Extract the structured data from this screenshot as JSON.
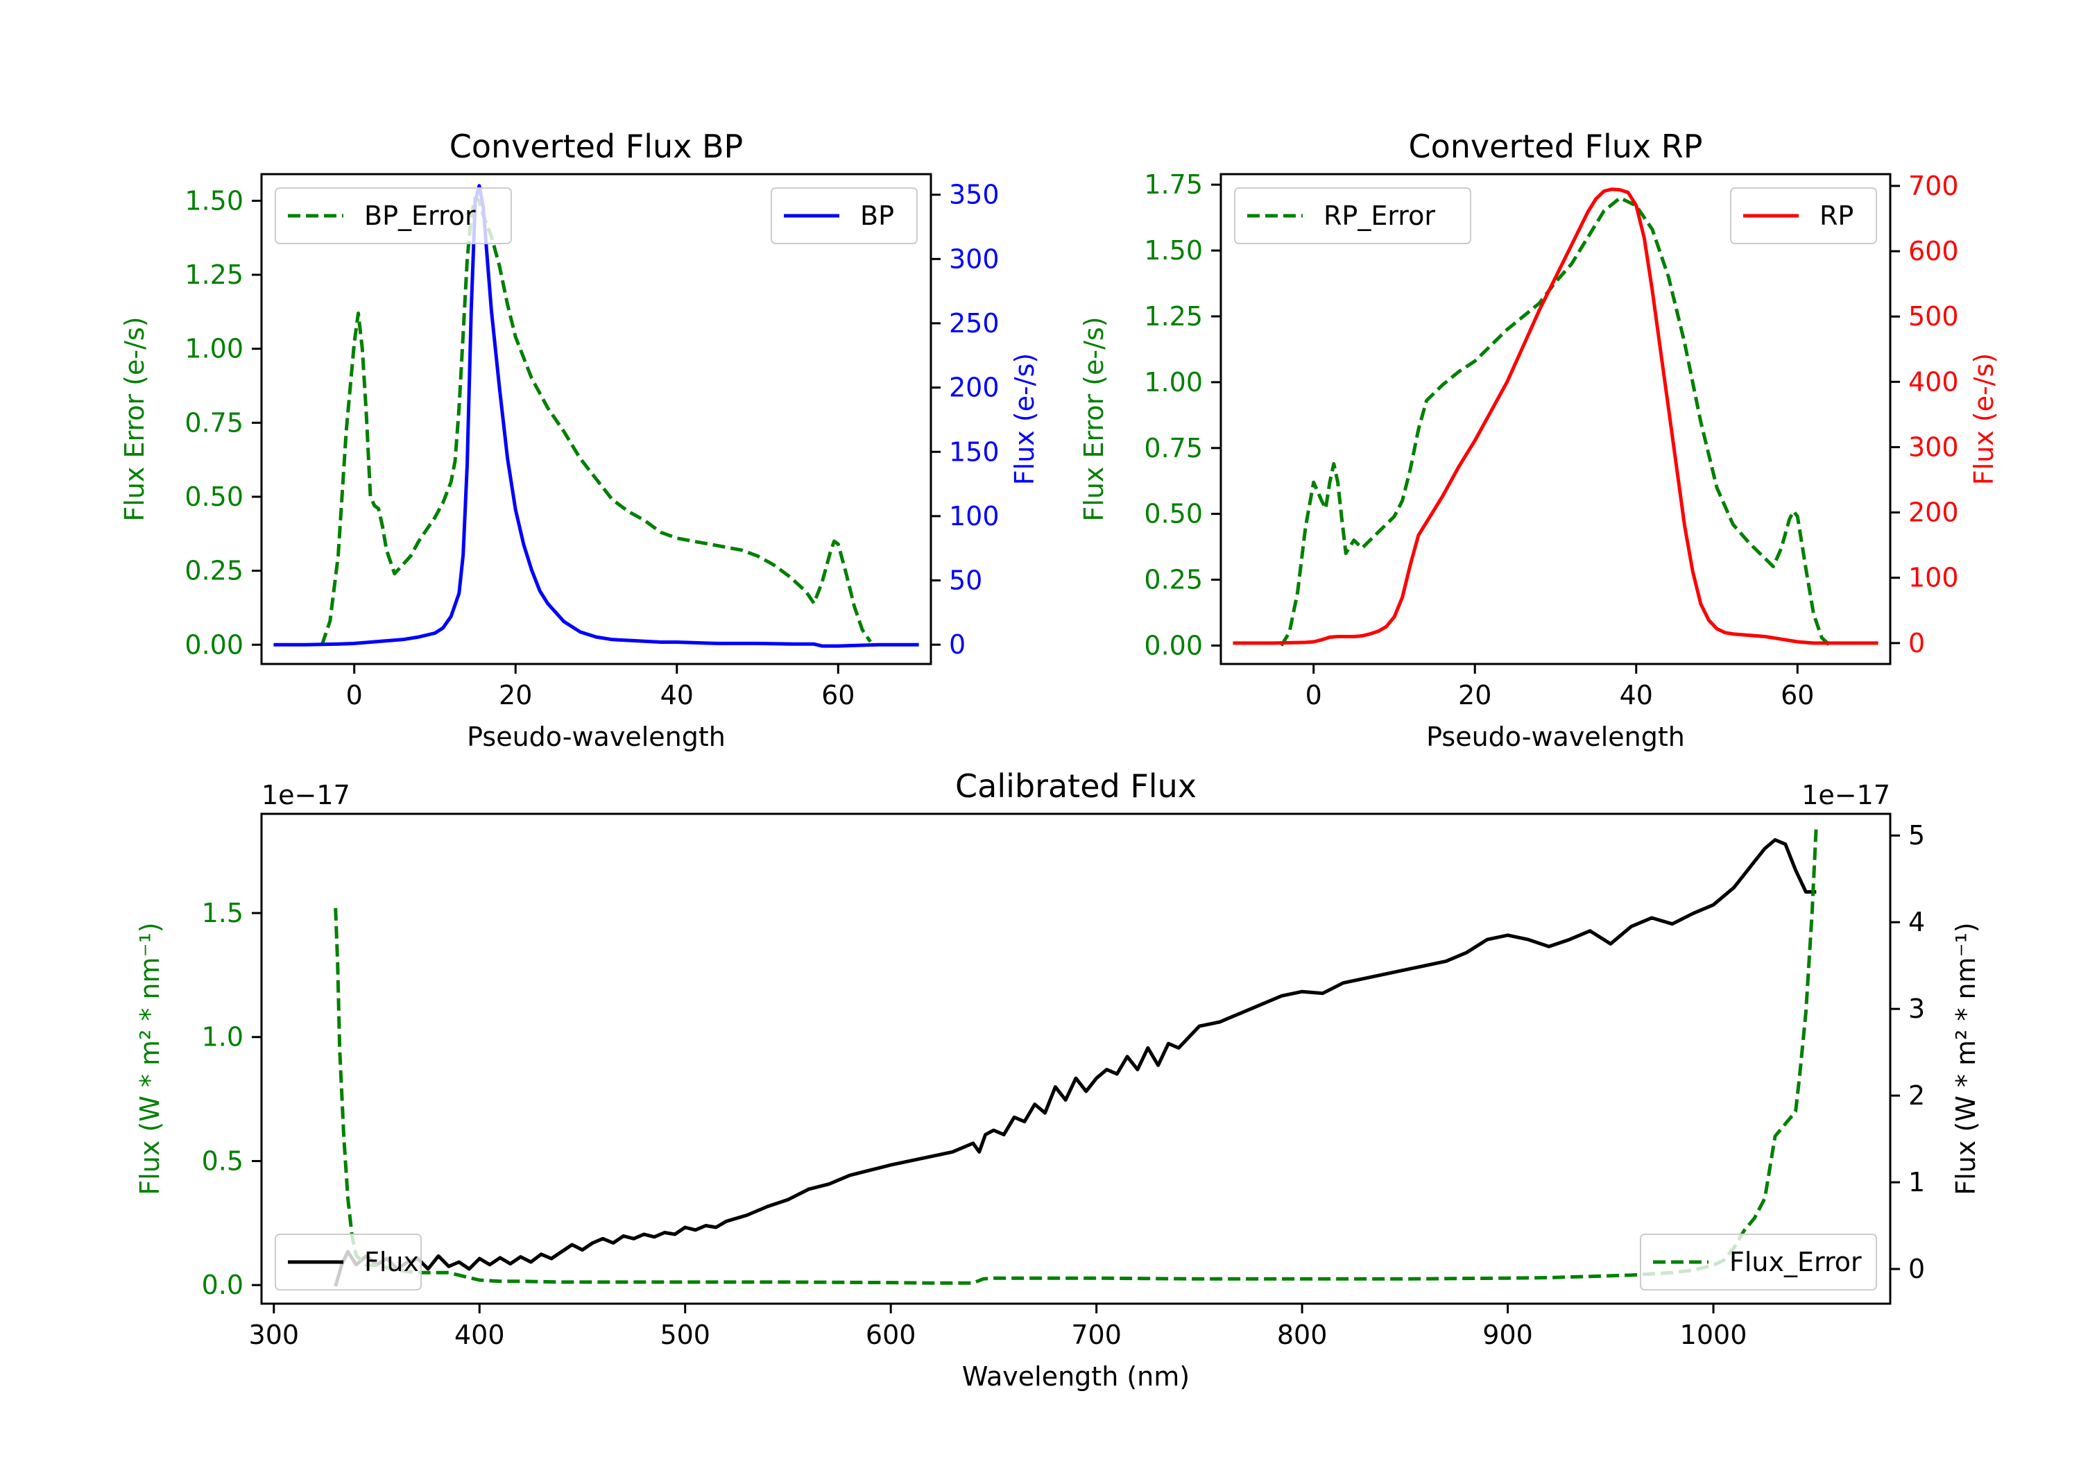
{
  "chart_data": [
    {
      "type": "line",
      "title": "Converted Flux BP",
      "xlabel": "Pseudo-wavelength",
      "ylabel_left": "Flux Error (e-/s)",
      "ylabel_right": "Flux (e-/s)",
      "xlim": [
        -11.5,
        71.5
      ],
      "ylim_left": [
        -0.065,
        1.59
      ],
      "ylim_right": [
        -15,
        366
      ],
      "x_ticks": [
        0,
        20,
        40,
        60
      ],
      "y_ticks_left": [
        0.0,
        0.25,
        0.5,
        0.75,
        1.0,
        1.25,
        1.5
      ],
      "y_tick_labels_left": [
        "0.00",
        "0.25",
        "0.50",
        "0.75",
        "1.00",
        "1.25",
        "1.50"
      ],
      "y_ticks_right": [
        0,
        50,
        100,
        150,
        200,
        250,
        300,
        350
      ],
      "left_color": "#008000",
      "right_color": "#0000ff",
      "legend_left": "top-left",
      "legend_right": "top-right",
      "series": [
        {
          "name": "BP_Error",
          "axis": "left",
          "color": "#008000",
          "style": "dashed",
          "x": [
            -4,
            -3,
            -2,
            -1,
            0,
            0.5,
            1,
            1.5,
            2,
            2.5,
            3,
            3.5,
            4,
            5,
            6,
            7,
            8,
            9,
            10,
            11,
            12,
            12.5,
            13,
            13.5,
            14,
            14.5,
            15,
            15.5,
            16,
            17,
            18,
            19,
            20,
            22,
            24,
            26,
            28,
            30,
            32,
            34,
            36,
            38,
            40,
            42,
            44,
            46,
            48,
            50,
            52,
            54,
            56,
            57,
            58,
            59,
            59.5,
            60,
            61,
            62,
            63,
            64
          ],
          "y": [
            0.0,
            0.08,
            0.3,
            0.72,
            1.02,
            1.12,
            1.0,
            0.78,
            0.5,
            0.47,
            0.46,
            0.4,
            0.32,
            0.24,
            0.27,
            0.3,
            0.35,
            0.39,
            0.43,
            0.48,
            0.55,
            0.62,
            0.8,
            1.05,
            1.3,
            1.45,
            1.51,
            1.5,
            1.45,
            1.38,
            1.28,
            1.15,
            1.04,
            0.9,
            0.8,
            0.72,
            0.63,
            0.56,
            0.49,
            0.45,
            0.42,
            0.38,
            0.36,
            0.35,
            0.34,
            0.33,
            0.32,
            0.3,
            0.27,
            0.23,
            0.18,
            0.14,
            0.21,
            0.31,
            0.35,
            0.34,
            0.24,
            0.13,
            0.05,
            0.01
          ]
        },
        {
          "name": "BP",
          "axis": "right",
          "color": "#0000ff",
          "style": "solid",
          "x": [
            -10,
            -6,
            -2,
            0,
            2,
            4,
            6,
            8,
            10,
            11,
            12,
            13,
            13.5,
            14,
            14.5,
            15,
            15.5,
            16,
            16.5,
            17,
            18,
            19,
            20,
            21,
            22,
            23,
            24,
            26,
            28,
            30,
            32,
            35,
            38,
            40,
            45,
            50,
            55,
            57,
            58,
            60,
            65,
            70
          ],
          "y": [
            0,
            0,
            0.5,
            1,
            2,
            3,
            4,
            6,
            9,
            13,
            22,
            40,
            70,
            140,
            260,
            345,
            357,
            340,
            300,
            260,
            200,
            145,
            105,
            78,
            58,
            42,
            32,
            18,
            10,
            6,
            4,
            3,
            2,
            2,
            1,
            1,
            0.5,
            0.5,
            -1,
            -1,
            0,
            0
          ]
        }
      ]
    },
    {
      "type": "line",
      "title": "Converted Flux RP",
      "xlabel": "Pseudo-wavelength",
      "ylabel_left": "Flux Error (e-/s)",
      "ylabel_right": "Flux (e-/s)",
      "xlim": [
        -11.5,
        71.5
      ],
      "ylim_left": [
        -0.07,
        1.79
      ],
      "ylim_right": [
        -32,
        718
      ],
      "x_ticks": [
        0,
        20,
        40,
        60
      ],
      "y_ticks_left": [
        0.0,
        0.25,
        0.5,
        0.75,
        1.0,
        1.25,
        1.5,
        1.75
      ],
      "y_tick_labels_left": [
        "0.00",
        "0.25",
        "0.50",
        "0.75",
        "1.00",
        "1.25",
        "1.50",
        "1.75"
      ],
      "y_ticks_right": [
        0,
        100,
        200,
        300,
        400,
        500,
        600,
        700
      ],
      "left_color": "#008000",
      "right_color": "#ff0000",
      "legend_left": "top-left",
      "legend_right": "top-right",
      "series": [
        {
          "name": "RP_Error",
          "axis": "left",
          "color": "#008000",
          "style": "dashed",
          "x": [
            -4,
            -3,
            -2,
            -1,
            0,
            1,
            1.5,
            2,
            2.5,
            3,
            3.5,
            4,
            5,
            6,
            7,
            8,
            9,
            10,
            11,
            12,
            13,
            14,
            16,
            18,
            20,
            22,
            24,
            26,
            28,
            30,
            32,
            34,
            36,
            38,
            40,
            42,
            44,
            46,
            48,
            50,
            52,
            54,
            56,
            57,
            58,
            59,
            59.5,
            60,
            61,
            62,
            63,
            64
          ],
          "y": [
            0.0,
            0.05,
            0.2,
            0.45,
            0.62,
            0.55,
            0.52,
            0.62,
            0.69,
            0.62,
            0.48,
            0.35,
            0.4,
            0.37,
            0.4,
            0.43,
            0.46,
            0.49,
            0.55,
            0.67,
            0.82,
            0.93,
            0.99,
            1.04,
            1.08,
            1.14,
            1.2,
            1.25,
            1.3,
            1.38,
            1.45,
            1.55,
            1.65,
            1.7,
            1.67,
            1.58,
            1.4,
            1.15,
            0.85,
            0.6,
            0.46,
            0.39,
            0.33,
            0.3,
            0.37,
            0.48,
            0.51,
            0.49,
            0.3,
            0.12,
            0.03,
            0.0
          ]
        },
        {
          "name": "RP",
          "axis": "right",
          "color": "#ff0000",
          "style": "solid",
          "x": [
            -10,
            -5,
            -1,
            0,
            1,
            2,
            3,
            4,
            5,
            6,
            7,
            8,
            9,
            10,
            11,
            12,
            13,
            14,
            16,
            18,
            20,
            22,
            24,
            26,
            28,
            30,
            32,
            33,
            34,
            35,
            36,
            37,
            38,
            39,
            40,
            41,
            42,
            43,
            44,
            45,
            46,
            47,
            48,
            49,
            50,
            51,
            52,
            54,
            56,
            58,
            60,
            62,
            65,
            70
          ],
          "y": [
            0,
            0,
            1,
            2,
            5,
            9,
            10,
            10,
            10,
            11,
            14,
            18,
            25,
            40,
            70,
            120,
            165,
            185,
            225,
            270,
            310,
            355,
            400,
            455,
            510,
            560,
            610,
            635,
            660,
            680,
            692,
            695,
            694,
            690,
            670,
            620,
            540,
            450,
            360,
            270,
            180,
            110,
            60,
            35,
            22,
            16,
            14,
            12,
            10,
            6,
            2,
            0,
            0,
            0
          ]
        }
      ]
    },
    {
      "type": "line",
      "title": "Calibrated Flux",
      "xlabel": "Wavelength (nm)",
      "ylabel_left": "Flux (W * m² * nm⁻¹)",
      "ylabel_right": "Flux (W * m² * nm⁻¹)",
      "offset_left": "1e−17",
      "offset_right": "1e−17",
      "xlim": [
        294,
        1086
      ],
      "ylim_left": [
        -0.075,
        1.9
      ],
      "ylim_right": [
        -0.4,
        5.25
      ],
      "x_ticks": [
        300,
        400,
        500,
        600,
        700,
        800,
        900,
        1000
      ],
      "y_ticks_left": [
        0.0,
        0.5,
        1.0,
        1.5
      ],
      "y_tick_labels_left": [
        "0.0",
        "0.5",
        "1.0",
        "1.5"
      ],
      "y_ticks_right": [
        0,
        1,
        2,
        3,
        4,
        5
      ],
      "left_color": "#008000",
      "right_color": "#000000",
      "legend_left": "bottom-left",
      "legend_right": "bottom-right",
      "series": [
        {
          "name": "Flux",
          "axis": "right",
          "color": "#000000",
          "style": "solid",
          "x": [
            330,
            333,
            336,
            340,
            345,
            350,
            355,
            360,
            365,
            370,
            375,
            380,
            385,
            390,
            395,
            400,
            405,
            410,
            415,
            420,
            425,
            430,
            435,
            440,
            445,
            450,
            455,
            460,
            465,
            470,
            475,
            480,
            485,
            490,
            495,
            500,
            505,
            510,
            515,
            520,
            530,
            540,
            550,
            560,
            570,
            580,
            590,
            600,
            610,
            620,
            630,
            640,
            643,
            646,
            650,
            655,
            660,
            665,
            670,
            675,
            680,
            685,
            690,
            695,
            700,
            705,
            710,
            715,
            720,
            725,
            730,
            735,
            740,
            750,
            760,
            770,
            780,
            790,
            800,
            810,
            820,
            830,
            840,
            850,
            860,
            870,
            880,
            890,
            900,
            910,
            920,
            930,
            940,
            950,
            960,
            970,
            980,
            990,
            1000,
            1010,
            1020,
            1025,
            1030,
            1035,
            1040,
            1045,
            1050
          ],
          "y": [
            -0.2,
            0.05,
            0.2,
            0.05,
            0.15,
            0.05,
            0.12,
            0.0,
            0.08,
            0.12,
            0.0,
            0.15,
            0.03,
            0.08,
            0.0,
            0.12,
            0.05,
            0.13,
            0.06,
            0.14,
            0.08,
            0.17,
            0.12,
            0.2,
            0.28,
            0.22,
            0.3,
            0.35,
            0.3,
            0.38,
            0.35,
            0.4,
            0.37,
            0.42,
            0.4,
            0.48,
            0.45,
            0.5,
            0.48,
            0.55,
            0.62,
            0.72,
            0.8,
            0.92,
            0.98,
            1.08,
            1.14,
            1.2,
            1.25,
            1.3,
            1.35,
            1.45,
            1.35,
            1.55,
            1.6,
            1.55,
            1.75,
            1.7,
            1.9,
            1.8,
            2.1,
            1.95,
            2.2,
            2.05,
            2.2,
            2.3,
            2.25,
            2.45,
            2.3,
            2.55,
            2.35,
            2.6,
            2.55,
            2.8,
            2.85,
            2.95,
            3.05,
            3.15,
            3.2,
            3.18,
            3.3,
            3.35,
            3.4,
            3.45,
            3.5,
            3.55,
            3.65,
            3.8,
            3.85,
            3.8,
            3.72,
            3.8,
            3.9,
            3.75,
            3.95,
            4.05,
            3.98,
            4.1,
            4.2,
            4.4,
            4.7,
            4.85,
            4.95,
            4.9,
            4.6,
            4.35,
            4.35
          ]
        },
        {
          "name": "Flux_Error",
          "axis": "left",
          "color": "#008000",
          "style": "dashed",
          "x": [
            330,
            331,
            332,
            334,
            336,
            338,
            340,
            345,
            350,
            360,
            370,
            380,
            385,
            390,
            395,
            400,
            410,
            420,
            440,
            460,
            500,
            550,
            600,
            620,
            640,
            645,
            650,
            700,
            750,
            800,
            850,
            900,
            920,
            940,
            960,
            980,
            990,
            1000,
            1005,
            1010,
            1015,
            1020,
            1025,
            1028,
            1030,
            1035,
            1040,
            1042,
            1045,
            1048,
            1050
          ],
          "y": [
            1.52,
            1.3,
            0.95,
            0.6,
            0.35,
            0.2,
            0.12,
            0.08,
            0.08,
            0.06,
            0.05,
            0.05,
            0.05,
            0.04,
            0.03,
            0.02,
            0.015,
            0.015,
            0.012,
            0.012,
            0.012,
            0.012,
            0.01,
            0.008,
            0.008,
            0.025,
            0.028,
            0.028,
            0.025,
            0.025,
            0.025,
            0.028,
            0.03,
            0.035,
            0.04,
            0.05,
            0.06,
            0.08,
            0.1,
            0.15,
            0.22,
            0.27,
            0.35,
            0.5,
            0.6,
            0.65,
            0.7,
            0.85,
            1.1,
            1.5,
            1.85
          ]
        }
      ]
    }
  ]
}
